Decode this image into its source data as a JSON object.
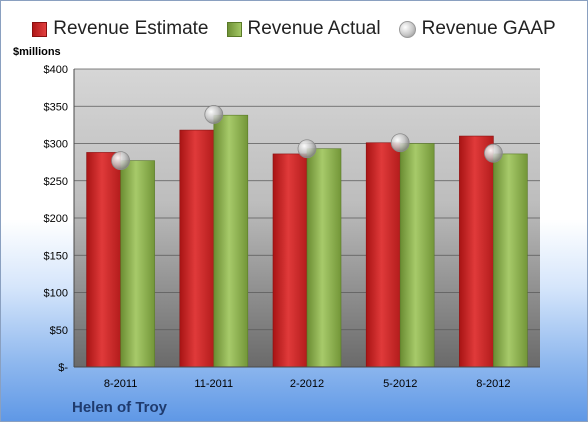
{
  "legend": {
    "estimate": "Revenue Estimate",
    "actual": "Revenue Actual",
    "gaap": "Revenue GAAP"
  },
  "unit_label": "$millions",
  "company": "Helen of Troy",
  "colors": {
    "estimate": "#cc2a2a",
    "actual": "#8db04f",
    "gaap": "#d0d0d0"
  },
  "chart_data": {
    "type": "bar",
    "title": "",
    "xlabel": "",
    "ylabel": "$millions",
    "categories": [
      "8-2011",
      "11-2011",
      "2-2012",
      "5-2012",
      "8-2012"
    ],
    "series": [
      {
        "name": "Revenue Estimate",
        "type": "bar",
        "values": [
          288,
          318,
          286,
          301,
          310
        ]
      },
      {
        "name": "Revenue Actual",
        "type": "bar",
        "values": [
          277,
          338,
          293,
          300,
          286
        ]
      },
      {
        "name": "Revenue GAAP",
        "type": "scatter",
        "values": [
          277,
          339,
          293,
          301,
          287
        ]
      }
    ],
    "ylim": [
      0,
      400
    ],
    "y_ticks": [
      0,
      50,
      100,
      150,
      200,
      250,
      300,
      350,
      400
    ],
    "y_tick_labels": [
      "$-",
      "$50",
      "$100",
      "$150",
      "$200",
      "$250",
      "$300",
      "$350",
      "$400"
    ],
    "grid": true,
    "legend_position": "top"
  }
}
